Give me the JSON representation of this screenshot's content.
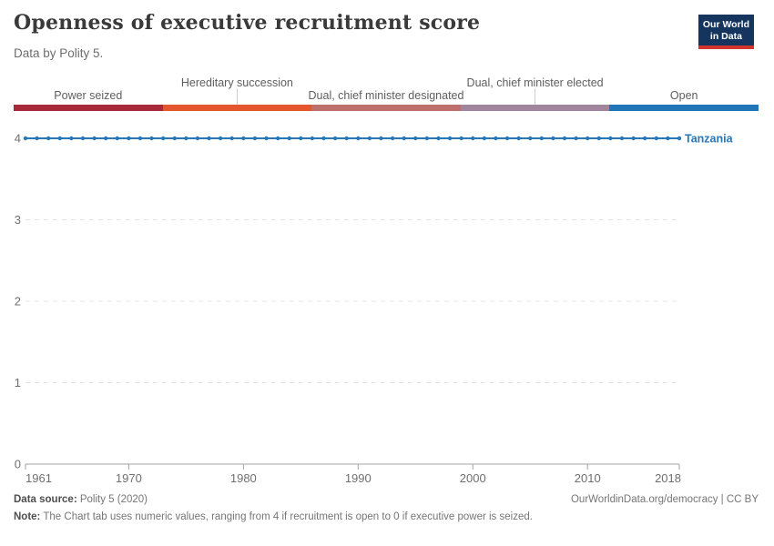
{
  "header": {
    "title": "Openness of executive recruitment score",
    "subtitle": "Data by Polity 5.",
    "logo": {
      "line1": "Our World",
      "line2": "in Data"
    }
  },
  "legend": {
    "categories": [
      {
        "label": "Power seized",
        "color": "#a8293a",
        "row": "bottom"
      },
      {
        "label": "Hereditary succession",
        "color": "#e4572e",
        "row": "top"
      },
      {
        "label": "Dual, chief minister designated",
        "color": "#bd6f6b",
        "row": "bottom"
      },
      {
        "label": "Dual, chief minister elected",
        "color": "#a1859c",
        "row": "top"
      },
      {
        "label": "Open",
        "color": "#2076b6",
        "row": "bottom"
      }
    ]
  },
  "chart_data": {
    "type": "line",
    "title": "Openness of executive recruitment score",
    "subtitle": "Data by Polity 5.",
    "xlabel": "",
    "ylabel": "",
    "xlim": [
      1961,
      2018
    ],
    "ylim": [
      0,
      4
    ],
    "x_ticks": [
      1961,
      1970,
      1980,
      1990,
      2000,
      2010,
      2018
    ],
    "y_ticks": [
      0,
      1,
      2,
      3,
      4
    ],
    "grid": "horizontal-dashed",
    "legend_position": "end-of-line-label",
    "series": [
      {
        "name": "Tanzania",
        "color": "#2877b8",
        "x": [
          1961,
          1962,
          1963,
          1964,
          1965,
          1966,
          1967,
          1968,
          1969,
          1970,
          1971,
          1972,
          1973,
          1974,
          1975,
          1976,
          1977,
          1978,
          1979,
          1980,
          1981,
          1982,
          1983,
          1984,
          1985,
          1986,
          1987,
          1988,
          1989,
          1990,
          1991,
          1992,
          1993,
          1994,
          1995,
          1996,
          1997,
          1998,
          1999,
          2000,
          2001,
          2002,
          2003,
          2004,
          2005,
          2006,
          2007,
          2008,
          2009,
          2010,
          2011,
          2012,
          2013,
          2014,
          2015,
          2016,
          2017,
          2018
        ],
        "y": [
          4,
          4,
          4,
          4,
          4,
          4,
          4,
          4,
          4,
          4,
          4,
          4,
          4,
          4,
          4,
          4,
          4,
          4,
          4,
          4,
          4,
          4,
          4,
          4,
          4,
          4,
          4,
          4,
          4,
          4,
          4,
          4,
          4,
          4,
          4,
          4,
          4,
          4,
          4,
          4,
          4,
          4,
          4,
          4,
          4,
          4,
          4,
          4,
          4,
          4,
          4,
          4,
          4,
          4,
          4,
          4,
          4,
          4
        ]
      }
    ]
  },
  "footer": {
    "source_label": "Data source:",
    "source_text": " Polity 5 (2020)",
    "credit": "OurWorldinData.org/democracy | CC BY",
    "note_label": "Note:",
    "note_text": " The Chart tab uses numeric values, ranging from 4 if recruitment is open to 0 if executive power is seized."
  }
}
